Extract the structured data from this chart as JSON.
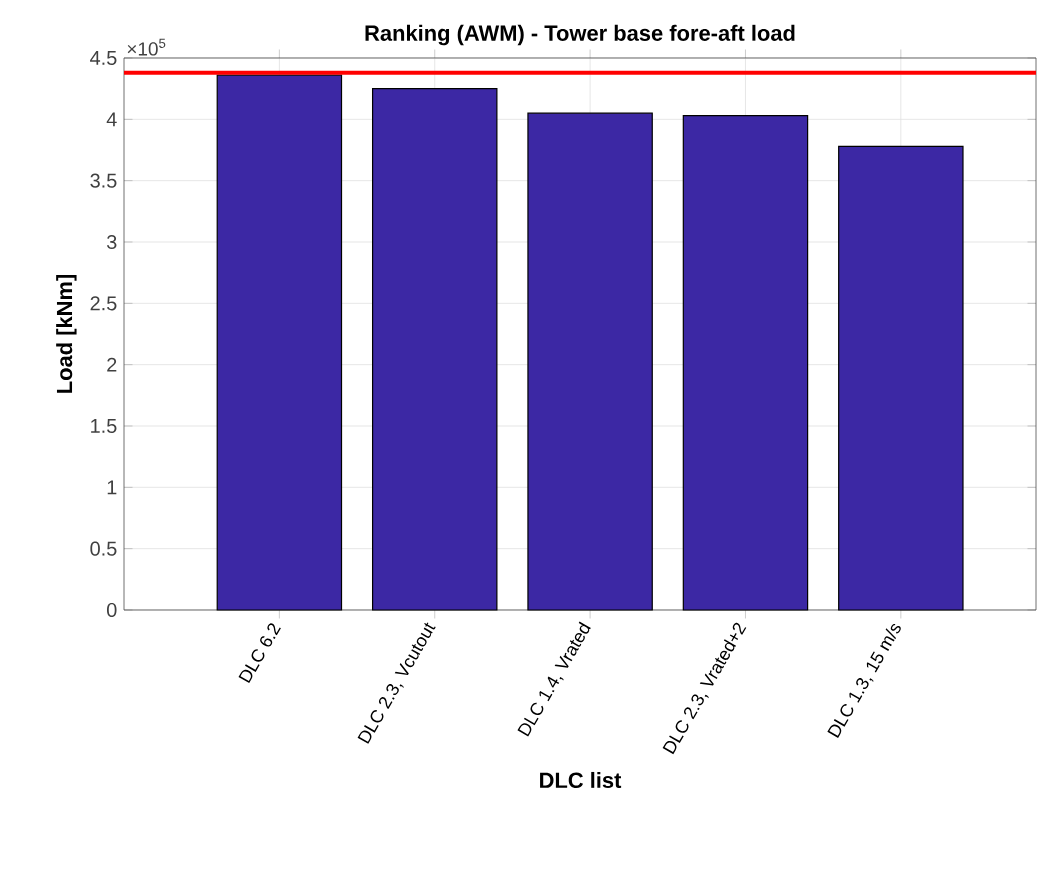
{
  "chart_data": {
    "type": "bar",
    "title": "Ranking (AWM) - Tower base fore-aft load",
    "xlabel": "DLC list",
    "ylabel": "Load [kNm]",
    "categories": [
      "DLC 6.2",
      "DLC 2.3, Vcutout",
      "DLC 1.4, Vrated",
      "DLC 2.3, Vrated+2",
      "DLC 1.3, 15 m/s"
    ],
    "values": [
      4.36,
      4.25,
      4.05,
      4.03,
      3.78
    ],
    "color": "#3c28a4",
    "ylim": [
      0,
      4.5
    ],
    "yticks": [
      0,
      0.5,
      1,
      1.5,
      2,
      2.5,
      3,
      3.5,
      4,
      4.5
    ],
    "ref_lines": [
      {
        "axis": "y",
        "value": 4.38,
        "color": "#ff0000"
      }
    ],
    "annotations": [
      "×10$^{5}$"
    ],
    "grid": true
  }
}
